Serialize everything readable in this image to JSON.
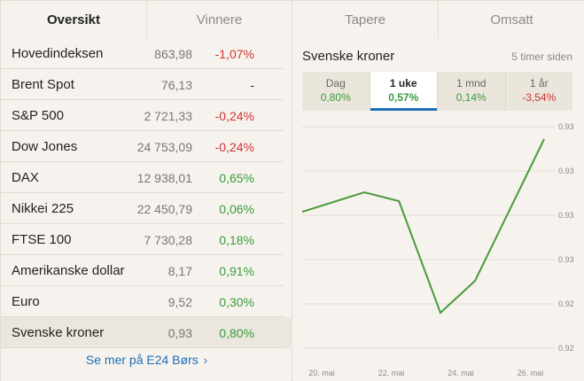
{
  "tabs": [
    {
      "label": "Oversikt",
      "active": true
    },
    {
      "label": "Vinnere",
      "active": false
    },
    {
      "label": "Tapere",
      "active": false
    },
    {
      "label": "Omsatt",
      "active": false
    }
  ],
  "markets": [
    {
      "name": "Hovedindeksen",
      "value": "863,98",
      "change": "-1,07%",
      "trend": "neg"
    },
    {
      "name": "Brent Spot",
      "value": "76,13",
      "change": "-",
      "trend": "neu"
    },
    {
      "name": "S&P 500",
      "value": "2 721,33",
      "change": "-0,24%",
      "trend": "neg"
    },
    {
      "name": "Dow Jones",
      "value": "24 753,09",
      "change": "-0,24%",
      "trend": "neg"
    },
    {
      "name": "DAX",
      "value": "12 938,01",
      "change": "0,65%",
      "trend": "pos"
    },
    {
      "name": "Nikkei 225",
      "value": "22 450,79",
      "change": "0,06%",
      "trend": "pos"
    },
    {
      "name": "FTSE 100",
      "value": "7 730,28",
      "change": "0,18%",
      "trend": "pos"
    },
    {
      "name": "Amerikanske dollar",
      "value": "8,17",
      "change": "0,91%",
      "trend": "pos"
    },
    {
      "name": "Euro",
      "value": "9,52",
      "change": "0,30%",
      "trend": "pos"
    },
    {
      "name": "Svenske kroner",
      "value": "0,93",
      "change": "0,80%",
      "trend": "pos",
      "selected": true
    }
  ],
  "more_link": {
    "label": "Se mer på E24 Børs",
    "icon": "chevron-right-icon"
  },
  "detail": {
    "title": "Svenske kroner",
    "updated": "5 timer siden",
    "periods": [
      {
        "label": "Dag",
        "value": "0,80%",
        "trend": "pos",
        "active": false
      },
      {
        "label": "1 uke",
        "value": "0,57%",
        "trend": "pos",
        "active": true
      },
      {
        "label": "1 mnd",
        "value": "0,14%",
        "trend": "pos",
        "active": false
      },
      {
        "label": "1 år",
        "value": "-3,54%",
        "trend": "neg",
        "active": false
      }
    ]
  },
  "colors": {
    "positive": "#3a9a3a",
    "negative": "#d1312f",
    "link": "#1d6fb8",
    "line": "#4a9a3a"
  },
  "chart_data": {
    "type": "line",
    "x_tick_labels": [
      "20. mai",
      "22. mai",
      "24. mai",
      "26. mai"
    ],
    "y_tick_labels": [
      "0.93",
      "0.93",
      "0.93",
      "0.93",
      "0.92",
      "0.92"
    ],
    "ylim": [
      0.919,
      0.9315
    ],
    "x": [
      0,
      1.8,
      2.8,
      4.0,
      5.0,
      7.0
    ],
    "series": [
      {
        "values": [
          0.9267,
          0.9278,
          0.9273,
          0.921,
          0.9228,
          0.9308
        ]
      }
    ],
    "grid": true
  }
}
